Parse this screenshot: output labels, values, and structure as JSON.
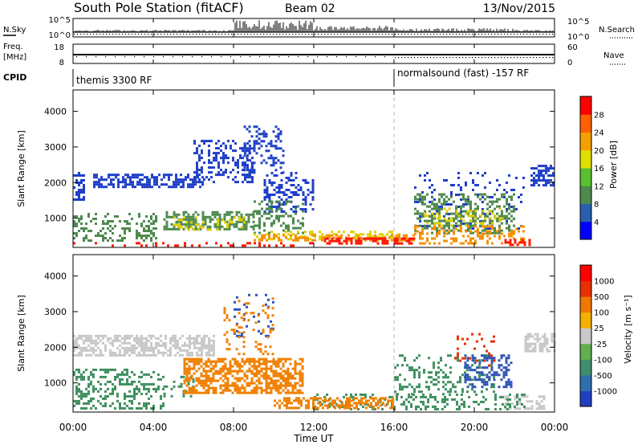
{
  "header": {
    "title": "South Pole Station (fitACF)",
    "beam": "Beam 02",
    "date": "13/Nov/2015"
  },
  "status_panels": {
    "nsky": {
      "label": "N.Sky",
      "ticks": [
        "10^5",
        "10^0"
      ]
    },
    "nsearch": {
      "label": "N.Search",
      "ticks": [
        "10^5",
        "10^0"
      ]
    },
    "freq": {
      "label_line1": "Freq.",
      "label_line2": "[MHz]",
      "ticks": [
        "18",
        "8"
      ]
    },
    "nave": {
      "label": "Nave",
      "ticks": [
        "60",
        "0"
      ]
    },
    "cpid": {
      "label": "CPID",
      "segments": [
        "themis 3300 RF",
        "normalsound (fast) -157 RF"
      ]
    }
  },
  "time_axis": {
    "label": "Time UT",
    "ticks": [
      "00:00",
      "04:00",
      "08:00",
      "12:00",
      "16:00",
      "20:00",
      "00:00"
    ]
  },
  "range_axis": {
    "label": "Slant Range [km]",
    "ticks": [
      "1000",
      "2000",
      "3000",
      "4000"
    ]
  },
  "colorbars": {
    "power": {
      "label": "Power [dB]",
      "ticks": [
        "28",
        "24",
        "20",
        "16",
        "12",
        "8",
        "4"
      ],
      "colors": [
        "#0000ff",
        "#2a5fb0",
        "#4e8a4e",
        "#58c030",
        "#e0e000",
        "#f5a000",
        "#ff6000",
        "#ff0000"
      ]
    },
    "velocity": {
      "label": "Velocity [m s⁻¹]",
      "ticks": [
        "1000",
        "500",
        "100",
        "25",
        "-25",
        "-100",
        "-500",
        "-1000"
      ],
      "colors": [
        "#2040c0",
        "#2f6fb0",
        "#3f8f6f",
        "#60b050",
        "#c8c8c8",
        "#f2b000",
        "#f07800",
        "#e83000",
        "#ff0000"
      ]
    }
  },
  "chart_data": [
    {
      "type": "heatmap",
      "title": "Power",
      "xlabel": "Time UT",
      "ylabel": "Slant Range [km]",
      "xlim": [
        "00:00",
        "24:00"
      ],
      "ylim": [
        180,
        4600
      ],
      "marker_time": "16:00",
      "series": [
        {
          "name": "",
          "level": "blue",
          "blobs": [
            {
              "t0": 0.0,
              "t1": 0.6,
              "r0": 1500,
              "r1": 2300,
              "density": 0.55
            },
            {
              "t0": 1.0,
              "t1": 6.5,
              "r0": 1850,
              "r1": 2250,
              "density": 0.6
            },
            {
              "t0": 6.0,
              "t1": 9.0,
              "r0": 2000,
              "r1": 3200,
              "density": 0.35
            },
            {
              "t0": 8.5,
              "t1": 10.5,
              "r0": 2300,
              "r1": 3600,
              "density": 0.3
            },
            {
              "t0": 9.5,
              "t1": 12.0,
              "r0": 1200,
              "r1": 2300,
              "density": 0.35
            },
            {
              "t0": 22.8,
              "t1": 24.0,
              "r0": 1900,
              "r1": 2500,
              "density": 0.5
            },
            {
              "t0": 17.0,
              "t1": 22.5,
              "r0": 700,
              "r1": 2300,
              "density": 0.12
            }
          ]
        },
        {
          "name": "",
          "level": "green",
          "blobs": [
            {
              "t0": 0.0,
              "t1": 4.2,
              "r0": 400,
              "r1": 1150,
              "density": 0.3
            },
            {
              "t0": 4.5,
              "t1": 9.0,
              "r0": 700,
              "r1": 1200,
              "density": 0.55
            },
            {
              "t0": 9.0,
              "t1": 11.5,
              "r0": 600,
              "r1": 1500,
              "density": 0.3
            },
            {
              "t0": 17.0,
              "t1": 22.0,
              "r0": 600,
              "r1": 1700,
              "density": 0.35
            }
          ]
        },
        {
          "name": "",
          "level": "yellow",
          "blobs": [
            {
              "t0": 5.0,
              "t1": 8.5,
              "r0": 700,
              "r1": 1050,
              "density": 0.25
            },
            {
              "t0": 17.5,
              "t1": 21.5,
              "r0": 800,
              "r1": 1300,
              "density": 0.2
            },
            {
              "t0": 9.0,
              "t1": 16.5,
              "r0": 420,
              "r1": 650,
              "density": 0.35
            }
          ]
        },
        {
          "name": "",
          "level": "orange",
          "blobs": [
            {
              "t0": 9.0,
              "t1": 17.0,
              "r0": 350,
              "r1": 550,
              "density": 0.45
            },
            {
              "t0": 17.0,
              "t1": 22.5,
              "r0": 300,
              "r1": 800,
              "density": 0.3
            }
          ]
        },
        {
          "name": "",
          "level": "red",
          "blobs": [
            {
              "t0": 12.5,
              "t1": 17.0,
              "r0": 260,
              "r1": 460,
              "density": 0.6
            },
            {
              "t0": 21.5,
              "t1": 22.8,
              "r0": 260,
              "r1": 420,
              "density": 0.55
            },
            {
              "t0": 0.0,
              "t1": 12.0,
              "r0": 240,
              "r1": 330,
              "density": 0.15
            }
          ]
        }
      ]
    },
    {
      "type": "heatmap",
      "title": "Velocity",
      "xlabel": "Time UT",
      "ylabel": "Slant Range [km]",
      "xlim": [
        "00:00",
        "24:00"
      ],
      "ylim": [
        180,
        4600
      ],
      "marker_time": "16:00",
      "series": [
        {
          "name": "",
          "level": "gray",
          "blobs": [
            {
              "t0": 0.0,
              "t1": 7.0,
              "r0": 1750,
              "r1": 2350,
              "density": 0.6
            },
            {
              "t0": 22.5,
              "t1": 24.0,
              "r0": 1900,
              "r1": 2400,
              "density": 0.5
            },
            {
              "t0": 21.5,
              "t1": 23.5,
              "r0": 250,
              "r1": 650,
              "density": 0.45
            }
          ]
        },
        {
          "name": "",
          "level": "green",
          "blobs": [
            {
              "t0": 0.0,
              "t1": 4.5,
              "r0": 300,
              "r1": 1400,
              "density": 0.35
            },
            {
              "t0": 4.5,
              "t1": 6.0,
              "r0": 600,
              "r1": 1200,
              "density": 0.3
            },
            {
              "t0": 12.0,
              "t1": 22.5,
              "r0": 250,
              "r1": 700,
              "density": 0.3
            },
            {
              "t0": 16.0,
              "t1": 21.0,
              "r0": 700,
              "r1": 1800,
              "density": 0.2
            }
          ]
        },
        {
          "name": "",
          "level": "blue",
          "blobs": [
            {
              "t0": 19.5,
              "t1": 21.8,
              "r0": 900,
              "r1": 1800,
              "density": 0.4
            },
            {
              "t0": 8.0,
              "t1": 10.0,
              "r0": 2300,
              "r1": 3500,
              "density": 0.1
            }
          ]
        },
        {
          "name": "",
          "level": "orange",
          "blobs": [
            {
              "t0": 5.5,
              "t1": 11.5,
              "r0": 700,
              "r1": 1700,
              "density": 0.6
            },
            {
              "t0": 7.5,
              "t1": 10.0,
              "r0": 1800,
              "r1": 3400,
              "density": 0.15
            },
            {
              "t0": 10.0,
              "t1": 16.0,
              "r0": 300,
              "r1": 600,
              "density": 0.55
            }
          ]
        },
        {
          "name": "",
          "level": "red",
          "blobs": [
            {
              "t0": 19.0,
              "t1": 21.0,
              "r0": 1500,
              "r1": 2400,
              "density": 0.12
            }
          ]
        }
      ]
    }
  ]
}
